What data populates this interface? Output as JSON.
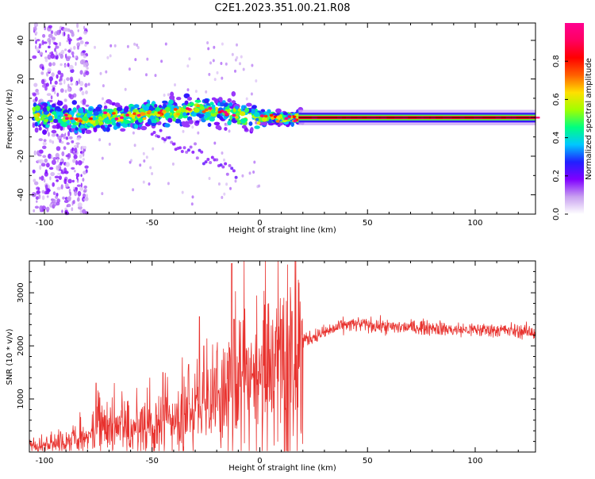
{
  "title": "C2E1.2023.351.00.21.R08",
  "colors": {
    "snr_line": "#e8322e",
    "colormap": [
      "#ffffff",
      "#c8a0f0",
      "#8000ff",
      "#2020ff",
      "#00c8ff",
      "#00ff80",
      "#a0ff00",
      "#ffe000",
      "#ff6000",
      "#ff0000",
      "#ff0060",
      "#ff0090"
    ]
  },
  "chart_data": [
    {
      "type": "heatmap",
      "xlabel": "Height of straight line (km)",
      "ylabel": "Frequency (Hz)",
      "xlim": [
        -107,
        128
      ],
      "ylim": [
        -50,
        49
      ],
      "xticks": [
        -100,
        -50,
        0,
        50,
        100
      ],
      "xtick_labels": [
        "-100",
        "-50",
        "0",
        "50",
        "100"
      ],
      "yticks": [
        -40,
        -20,
        0,
        20,
        40
      ],
      "ytick_labels": [
        "-40",
        "-20",
        "0",
        "20",
        "40"
      ],
      "grid": false,
      "band_center_hz": [
        [
          -105,
          2
        ],
        [
          -80,
          -1
        ],
        [
          -60,
          1
        ],
        [
          -40,
          3
        ],
        [
          -30,
          5
        ],
        [
          -15,
          2
        ],
        [
          0,
          0
        ],
        [
          20,
          0
        ],
        [
          128,
          0
        ]
      ],
      "colorbar": {
        "label": "Normalized spectral amplitude",
        "range": [
          0.0,
          1.0
        ],
        "ticks": [
          0.0,
          0.2,
          0.4,
          0.6,
          0.8
        ],
        "tick_labels": [
          "0.0",
          "0.2",
          "0.4",
          "0.6",
          "0.8"
        ]
      }
    },
    {
      "type": "line",
      "xlabel": "Height of straight line (km)",
      "ylabel": "SNR (10 * v/v)",
      "xlim": [
        -107,
        128
      ],
      "ylim": [
        0,
        3600
      ],
      "xticks": [
        -100,
        -50,
        0,
        50,
        100
      ],
      "xtick_labels": [
        "-100",
        "-50",
        "0",
        "50",
        "100"
      ],
      "yticks": [
        1000,
        2000,
        3000
      ],
      "ytick_labels": [
        "1000",
        "2000",
        "3000"
      ],
      "grid": false,
      "series": [
        {
          "x": [
            -107,
            -100,
            -90,
            -80,
            -75,
            -70,
            -60,
            -50,
            -40,
            -30,
            -20,
            -15,
            -12,
            -10,
            -5,
            0,
            5,
            10,
            15,
            18,
            20,
            30,
            40,
            50,
            60,
            70,
            80,
            90,
            100,
            110,
            120,
            128
          ],
          "y": [
            120,
            140,
            200,
            260,
            500,
            450,
            420,
            500,
            600,
            700,
            900,
            1000,
            1100,
            1150,
            1500,
            1500,
            1650,
            1500,
            1600,
            1900,
            2100,
            2250,
            2400,
            2400,
            2350,
            2350,
            2350,
            2300,
            2300,
            2300,
            2280,
            2250
          ]
        }
      ]
    }
  ]
}
